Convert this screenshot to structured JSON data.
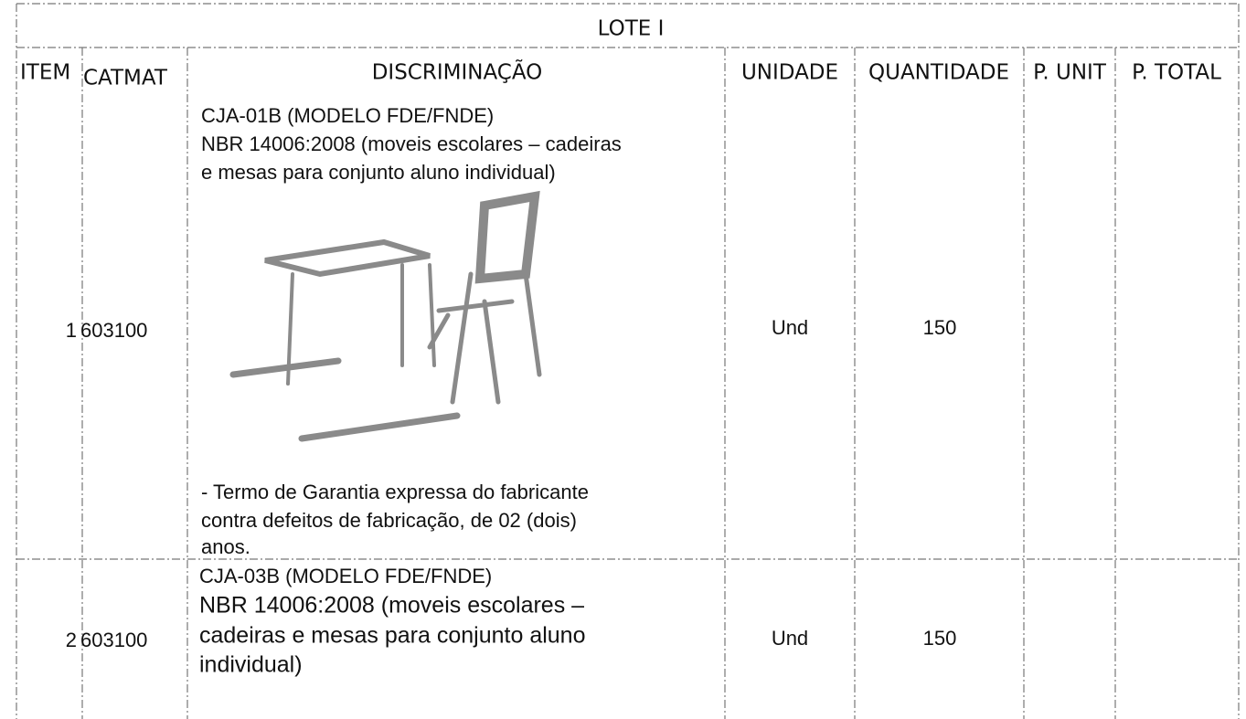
{
  "lot_title": "LOTE I",
  "table": {
    "headers": [
      "ITEM",
      "CATMAT",
      "DISCRIMINAÇÃO",
      "UNIDADE",
      "QUANTIDADE",
      "P. UNIT",
      "P. TOTAL"
    ],
    "rows": [
      {
        "item": 1,
        "catmat": 603100,
        "description": [
          "CJA-01B (MODELO FDE/FNDE)",
          "NBR 14006:2008 (moveis escolares – cadeiras",
          "e mesas para conjunto aluno individual)"
        ],
        "warranty": [
          "- Termo de Garantia expressa do fabricante",
          "contra defeitos de fabricação, de 02 (dois)",
          "anos."
        ],
        "unit": "Und",
        "quantity": 150
      },
      {
        "item": 2,
        "catmat": 603100,
        "description": [
          "CJA-03B (MODELO FDE/FNDE)",
          "NBR 14006:2008 (moveis escolares –",
          "cadeiras e mesas para conjunto aluno",
          "individual)"
        ],
        "unit": "Und",
        "quantity": 150
      }
    ]
  }
}
